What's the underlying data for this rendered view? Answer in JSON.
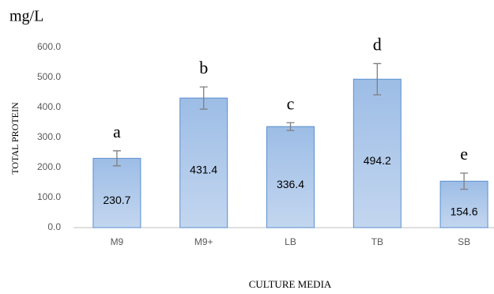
{
  "chart_data": {
    "type": "bar",
    "unit_label": "mg/L",
    "ylabel": "TOTAL PROTEIN",
    "xlabel": "CULTURE MEDIA",
    "categories": [
      "M9",
      "M9+",
      "LB",
      "TB",
      "SB"
    ],
    "values": [
      230.7,
      431.4,
      336.4,
      494.2,
      154.6
    ],
    "errors": [
      25,
      37,
      13,
      52,
      27
    ],
    "group_letters": [
      "a",
      "b",
      "c",
      "d",
      "e"
    ],
    "color": "#a9c4e8",
    "edge_color": "#5b8fd0",
    "ylim": [
      0,
      600
    ],
    "yticks": [
      {
        "value": 0,
        "label": "0.0"
      },
      {
        "value": 100,
        "label": "100.0"
      },
      {
        "value": 200,
        "label": "200.0"
      },
      {
        "value": 300,
        "label": "300.0"
      },
      {
        "value": 400,
        "label": "400.0"
      },
      {
        "value": 500,
        "label": "500.0"
      },
      {
        "value": 600,
        "label": "600.0"
      }
    ],
    "grid": false
  }
}
